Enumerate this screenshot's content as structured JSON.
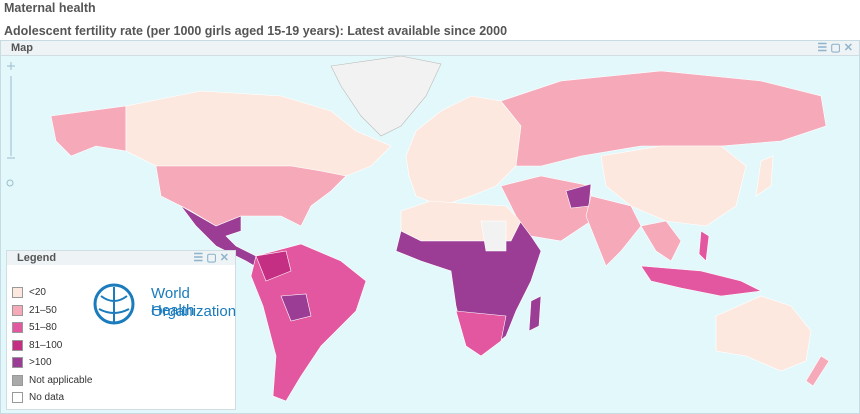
{
  "header": {
    "section": "Maternal health",
    "title": "Adolescent fertility rate (per 1000 girls aged 15-19 years):  Latest available since 2000"
  },
  "map_panel": {
    "title": "Map"
  },
  "legend": {
    "title": "Legend",
    "items": [
      {
        "label": "<20",
        "color": "#fde8df"
      },
      {
        "label": "21–50",
        "color": "#f5a9b9"
      },
      {
        "label": "51–80",
        "color": "#e2579f"
      },
      {
        "label": "81–100",
        "color": "#c42f83"
      },
      {
        "label": ">100",
        "color": "#9b3c95"
      },
      {
        "label": "Not applicable",
        "color": "#a9a9a9"
      },
      {
        "label": "No data",
        "color": "#ffffff"
      }
    ]
  },
  "logo": {
    "line1": "World Health",
    "line2": "Organization"
  }
}
